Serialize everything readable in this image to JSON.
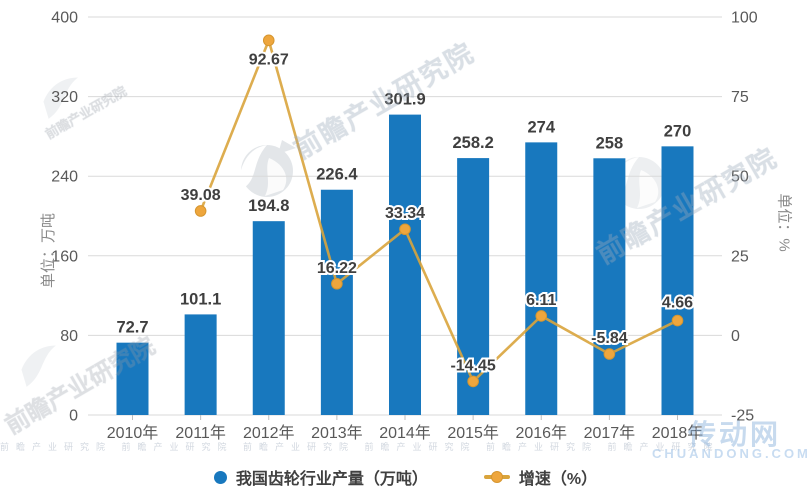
{
  "chart_data": {
    "type": "bar",
    "subtype": "combo-bar-line-dual-axis",
    "title": "",
    "categories": [
      "2010年",
      "2011年",
      "2012年",
      "2013年",
      "2014年",
      "2015年",
      "2016年",
      "2017年",
      "2018年"
    ],
    "series": [
      {
        "name": "我国齿轮行业产量（万吨）",
        "type": "bar",
        "axis": "left",
        "color": "#1878BE",
        "values": [
          72.7,
          101.1,
          194.8,
          226.4,
          301.9,
          258.2,
          274,
          258,
          270
        ],
        "labels": [
          "72.7",
          "101.1",
          "194.8",
          "226.4",
          "301.9",
          "258.2",
          "274",
          "258",
          "270"
        ]
      },
      {
        "name": "增速（%）",
        "type": "line",
        "axis": "right",
        "color": "#D9A43C",
        "point_color": "#EEA63D",
        "point_border": "#D6962F",
        "values": [
          null,
          39.08,
          92.67,
          16.22,
          33.34,
          -14.45,
          6.11,
          -5.84,
          4.66
        ],
        "labels": [
          null,
          "39.08",
          "92.67",
          "16.22",
          "33.34",
          "-14.45",
          "6.11",
          "-5.84",
          "4.66"
        ]
      }
    ],
    "left_axis": {
      "label": "单位：万吨",
      "range": [
        0,
        400
      ],
      "ticks": [
        400,
        320,
        240,
        160,
        80,
        0
      ]
    },
    "right_axis": {
      "label": "单位：%",
      "range": [
        -25,
        100
      ],
      "ticks": [
        100,
        75,
        50,
        25,
        0,
        -25
      ]
    },
    "grid": true,
    "legend_position": "bottom",
    "colors": {
      "grid_line": "#DADADA",
      "axis_tick": "#BFBFBF",
      "tick_text": "#595959",
      "value_text": "#3F3F3F"
    }
  },
  "watermarks": {
    "brand_text": "前瞻产业研究院",
    "row_text": "前瞻产业研究院  前瞻产业研究院  前瞻产业研究院  前瞻产业研究院  前瞻产业研究院  前瞻产业研究院",
    "site_text": "传动网",
    "site_domain": "CHUANDONG.COM"
  }
}
